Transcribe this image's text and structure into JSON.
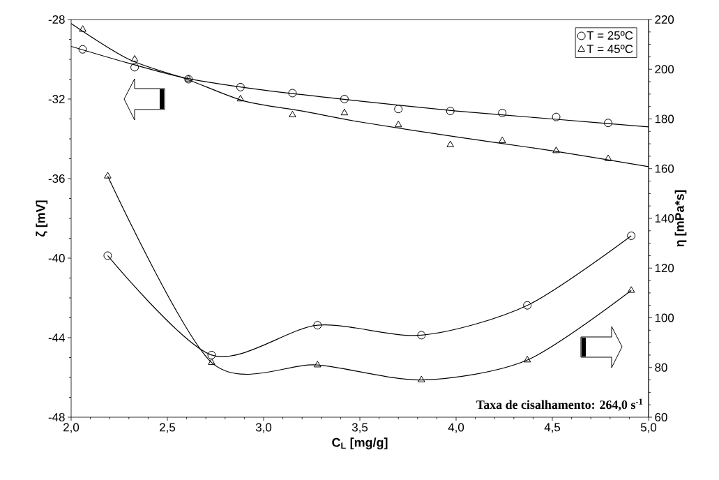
{
  "chart_data": {
    "type": "scatter",
    "xlabel": "C$_{L}$ [mg/g]",
    "ylabel": "ζ [mV]",
    "y2label": "η [mPa*s]",
    "xlim": [
      2,
      5
    ],
    "xticks": [
      {
        "value": 2,
        "label": "2,0"
      },
      {
        "value": 2.5,
        "label": "2,5"
      },
      {
        "value": 3,
        "label": "3,0"
      },
      {
        "value": 3.5,
        "label": "3,5"
      },
      {
        "value": 4,
        "label": "4,0"
      },
      {
        "value": 4.5,
        "label": "4,5"
      },
      {
        "value": 5,
        "label": "5,0"
      }
    ],
    "ylim": [
      -48,
      -28
    ],
    "yticks": [
      -48,
      -44,
      -40,
      -36,
      -32,
      -28
    ],
    "y2lim": [
      60,
      220
    ],
    "y2ticks": [
      60,
      80,
      100,
      120,
      140,
      160,
      180,
      200,
      220
    ],
    "legend": "top right",
    "annotations": [
      "Taxa de cisalhamento: 264,0 s$^{-1}$"
    ],
    "series": [
      {
        "name": "T = 25ºC",
        "marker": "circle",
        "color": "#000000",
        "x": [
          2.06,
          2.33,
          2.61,
          2.88,
          3.15,
          3.42,
          3.7,
          3.97,
          4.24,
          4.52,
          4.79
        ],
        "values": [
          -29.5,
          -30.4,
          -31.0,
          -31.4,
          -31.7,
          -32.0,
          -32.5,
          -32.6,
          -32.7,
          -32.9,
          -33.2
        ]
      },
      {
        "name": "T = 45ºC",
        "marker": "triangle",
        "color": "#000000",
        "x": [
          2.06,
          2.33,
          2.61,
          2.88,
          3.15,
          3.42,
          3.7,
          3.97,
          4.24,
          4.52,
          4.79
        ],
        "values": [
          -28.5,
          -30.0,
          -31.0,
          -32.0,
          -32.8,
          -32.7,
          -33.3,
          -34.3,
          -34.1,
          -34.6,
          -35.0
        ]
      },
      {
        "type": "line",
        "marker": "none",
        "color": "#000000",
        "x": [
          2.0,
          2.3,
          2.6,
          3.0,
          3.5,
          4.0,
          4.5,
          5.0
        ],
        "values": [
          -29.35,
          -30.2,
          -30.95,
          -31.55,
          -32.1,
          -32.6,
          -33.0,
          -33.4
        ]
      },
      {
        "type": "line",
        "marker": "none",
        "color": "#000000",
        "x": [
          2.0,
          2.3,
          2.6,
          2.9,
          3.2,
          3.5,
          4.0,
          4.5,
          5.0
        ],
        "values": [
          -28.2,
          -30.0,
          -31.0,
          -32.1,
          -32.6,
          -33.15,
          -33.9,
          -34.6,
          -35.4
        ]
      },
      {
        "type": "line",
        "marker": "circle",
        "axis": "y2",
        "color": "#000000",
        "x": [
          2.19,
          2.73,
          3.28,
          3.82,
          4.37,
          4.91
        ],
        "values": [
          125,
          85,
          97,
          93,
          105,
          133
        ]
      },
      {
        "type": "line",
        "marker": "triangle",
        "axis": "y2",
        "color": "#000000",
        "x": [
          2.19,
          2.73,
          3.28,
          3.82,
          4.37,
          4.91
        ],
        "values": [
          157,
          82,
          81,
          75,
          83,
          111
        ]
      }
    ]
  }
}
